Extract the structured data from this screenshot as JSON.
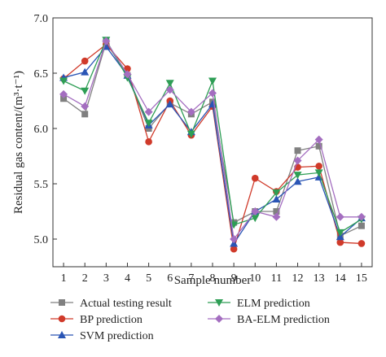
{
  "chart_data": {
    "type": "line",
    "xlabel": "Sample number",
    "ylabel": "Residual gas content/(m³·t⁻¹)",
    "xlim": [
      0.5,
      15.5
    ],
    "ylim": [
      4.75,
      7.0
    ],
    "x": [
      1,
      2,
      3,
      4,
      5,
      6,
      7,
      8,
      9,
      10,
      11,
      12,
      13,
      14,
      15
    ],
    "x_ticks": [
      "1",
      "2",
      "3",
      "4",
      "5",
      "6",
      "7",
      "8",
      "9",
      "10",
      "11",
      "12",
      "13",
      "14",
      "15"
    ],
    "y_ticks": [
      "5.0",
      "5.5",
      "6.0",
      "6.5",
      "7.0"
    ],
    "y_tick_values": [
      5.0,
      5.5,
      6.0,
      6.5,
      7.0
    ],
    "grid": false,
    "legend_placement": "bottom",
    "series": [
      {
        "name": "Actual testing result",
        "color": "#808080",
        "marker": "square",
        "values": [
          6.27,
          6.13,
          6.78,
          6.48,
          6.0,
          6.23,
          6.13,
          6.24,
          5.15,
          5.25,
          5.25,
          5.8,
          5.84,
          5.03,
          5.12
        ]
      },
      {
        "name": "BP prediction",
        "color": "#d03a2a",
        "marker": "circle",
        "values": [
          6.45,
          6.61,
          6.76,
          6.54,
          5.88,
          6.25,
          5.94,
          6.2,
          4.91,
          5.55,
          5.43,
          5.65,
          5.66,
          4.97,
          4.96
        ]
      },
      {
        "name": "SVM prediction",
        "color": "#2a55b5",
        "marker": "triangle-up",
        "values": [
          6.46,
          6.51,
          6.74,
          6.48,
          6.03,
          6.22,
          5.97,
          6.22,
          4.96,
          5.25,
          5.36,
          5.52,
          5.56,
          5.02,
          5.19
        ]
      },
      {
        "name": "ELM prediction",
        "color": "#2e9e55",
        "marker": "triangle-down",
        "values": [
          6.43,
          6.34,
          6.8,
          6.46,
          6.05,
          6.41,
          5.95,
          6.43,
          5.13,
          5.19,
          5.42,
          5.58,
          5.6,
          5.06,
          5.18
        ]
      },
      {
        "name": "BA-ELM prediction",
        "color": "#a46ec0",
        "marker": "diamond",
        "values": [
          6.31,
          6.2,
          6.79,
          6.49,
          6.15,
          6.35,
          6.15,
          6.32,
          5.0,
          5.25,
          5.2,
          5.71,
          5.9,
          5.2,
          5.2
        ]
      }
    ]
  }
}
